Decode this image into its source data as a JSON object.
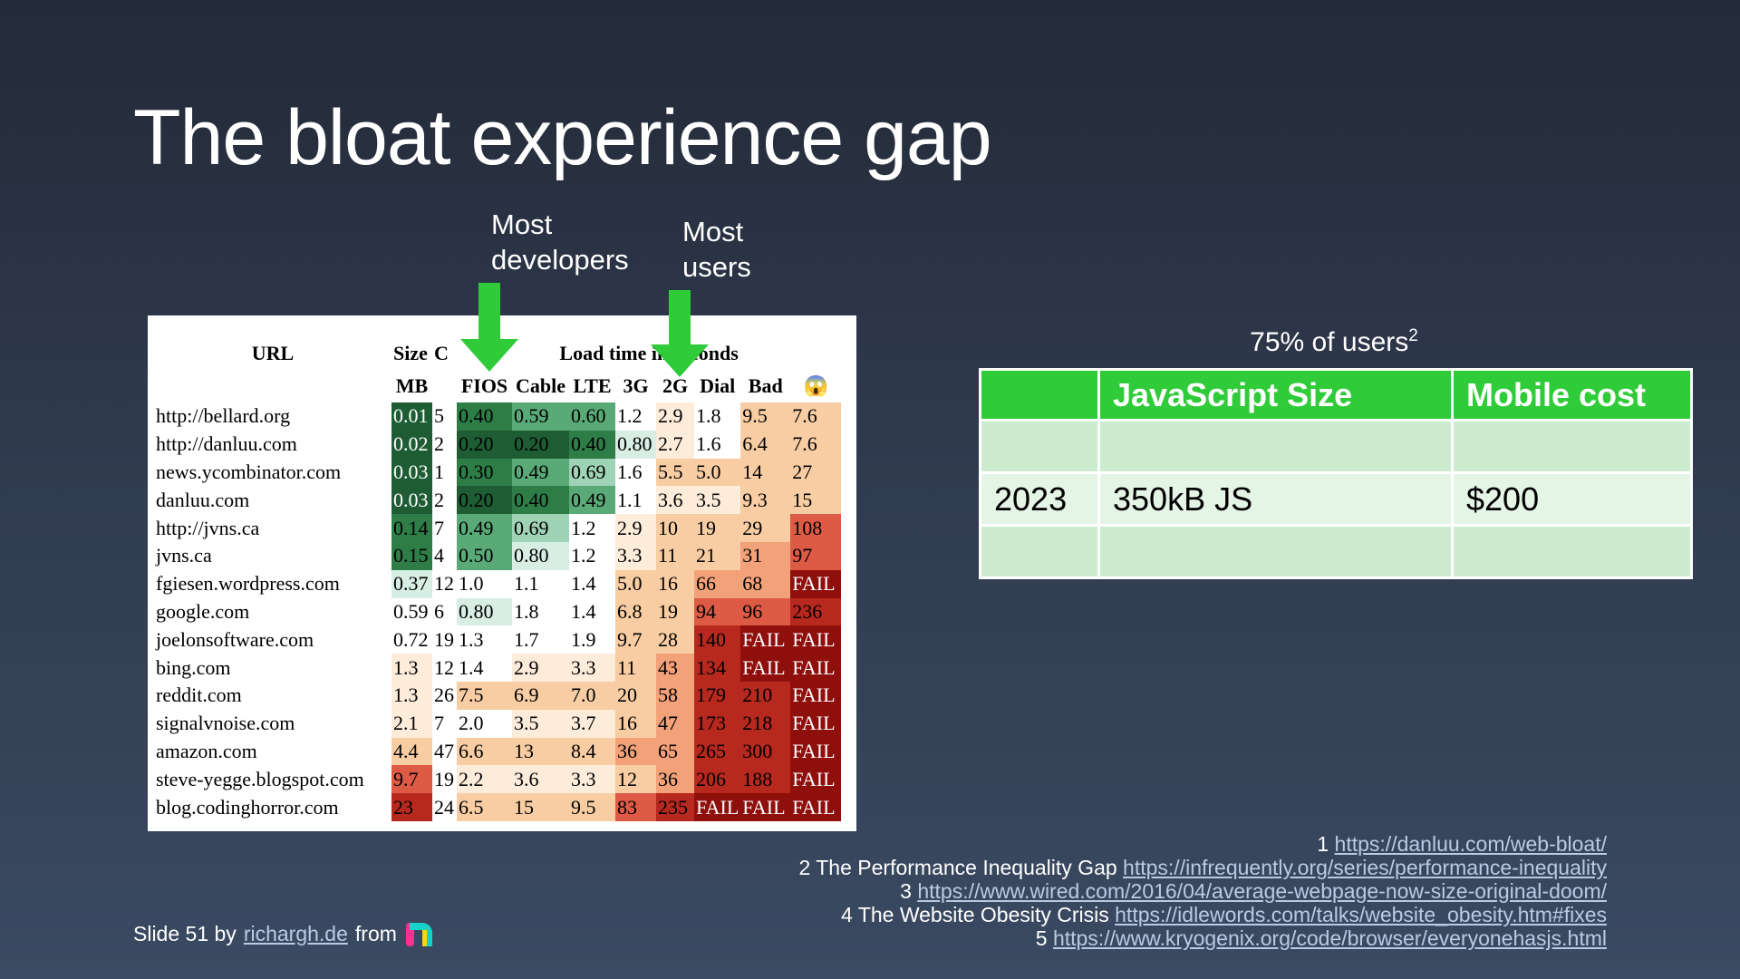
{
  "slide": {
    "title": "The bloat experience gap",
    "callout_developers": [
      "Most",
      "developers"
    ],
    "callout_users": [
      "Most",
      "users"
    ]
  },
  "load_table": {
    "group_headers": {
      "url": "URL",
      "size": "Size",
      "c": "C",
      "load_time": "Load time in seconds"
    },
    "columns": [
      "MB",
      "FIOS",
      "Cable",
      "LTE",
      "3G",
      "2G",
      "Dial",
      "Bad",
      "😱"
    ],
    "rows": [
      {
        "url": "http://bellard.org",
        "mb": "0.01",
        "c": "5",
        "v": [
          "0.40",
          "0.59",
          "0.60",
          "1.2",
          "2.9",
          "1.8",
          "9.5",
          "7.6"
        ]
      },
      {
        "url": "http://danluu.com",
        "mb": "0.02",
        "c": "2",
        "v": [
          "0.20",
          "0.20",
          "0.40",
          "0.80",
          "2.7",
          "1.6",
          "6.4",
          "7.6"
        ]
      },
      {
        "url": "news.ycombinator.com",
        "mb": "0.03",
        "c": "1",
        "v": [
          "0.30",
          "0.49",
          "0.69",
          "1.6",
          "5.5",
          "5.0",
          "14",
          "27"
        ]
      },
      {
        "url": "danluu.com",
        "mb": "0.03",
        "c": "2",
        "v": [
          "0.20",
          "0.40",
          "0.49",
          "1.1",
          "3.6",
          "3.5",
          "9.3",
          "15"
        ]
      },
      {
        "url": "http://jvns.ca",
        "mb": "0.14",
        "c": "7",
        "v": [
          "0.49",
          "0.69",
          "1.2",
          "2.9",
          "10",
          "19",
          "29",
          "108"
        ]
      },
      {
        "url": "jvns.ca",
        "mb": "0.15",
        "c": "4",
        "v": [
          "0.50",
          "0.80",
          "1.2",
          "3.3",
          "11",
          "21",
          "31",
          "97"
        ]
      },
      {
        "url": "fgiesen.wordpress.com",
        "mb": "0.37",
        "c": "12",
        "v": [
          "1.0",
          "1.1",
          "1.4",
          "5.0",
          "16",
          "66",
          "68",
          "FAIL"
        ]
      },
      {
        "url": "google.com",
        "mb": "0.59",
        "c": "6",
        "v": [
          "0.80",
          "1.8",
          "1.4",
          "6.8",
          "19",
          "94",
          "96",
          "236"
        ]
      },
      {
        "url": "joelonsoftware.com",
        "mb": "0.72",
        "c": "19",
        "v": [
          "1.3",
          "1.7",
          "1.9",
          "9.7",
          "28",
          "140",
          "FAIL",
          "FAIL"
        ]
      },
      {
        "url": "bing.com",
        "mb": "1.3",
        "c": "12",
        "v": [
          "1.4",
          "2.9",
          "3.3",
          "11",
          "43",
          "134",
          "FAIL",
          "FAIL"
        ]
      },
      {
        "url": "reddit.com",
        "mb": "1.3",
        "c": "26",
        "v": [
          "7.5",
          "6.9",
          "7.0",
          "20",
          "58",
          "179",
          "210",
          "FAIL"
        ]
      },
      {
        "url": "signalvnoise.com",
        "mb": "2.1",
        "c": "7",
        "v": [
          "2.0",
          "3.5",
          "3.7",
          "16",
          "47",
          "173",
          "218",
          "FAIL"
        ]
      },
      {
        "url": "amazon.com",
        "mb": "4.4",
        "c": "47",
        "v": [
          "6.6",
          "13",
          "8.4",
          "36",
          "65",
          "265",
          "300",
          "FAIL"
        ]
      },
      {
        "url": "steve-yegge.blogspot.com",
        "mb": "9.7",
        "c": "19",
        "v": [
          "2.2",
          "3.6",
          "3.3",
          "12",
          "36",
          "206",
          "188",
          "FAIL"
        ]
      },
      {
        "url": "blog.codinghorror.com",
        "mb": "23",
        "c": "24",
        "v": [
          "6.5",
          "15",
          "9.5",
          "83",
          "235",
          "FAIL",
          "FAIL",
          "FAIL"
        ]
      }
    ],
    "colors": {
      "g5": "#1e5c33",
      "g4": "#2e7d47",
      "g3": "#5aaa77",
      "g2": "#9fd3b5",
      "g1": "#d8eee4",
      "p0": "#ffffff",
      "p1": "#fdecd9",
      "p2": "#f8cda3",
      "p3": "#f2a178",
      "p4": "#dd5a45",
      "p5": "#b7281e",
      "p6": "#8e0f0c"
    }
  },
  "cost_table": {
    "caption": "75% of users",
    "caption_sup": "2",
    "headers": [
      "",
      "JavaScript Size",
      "Mobile cost"
    ],
    "rows": [
      [
        "",
        "",
        ""
      ],
      [
        "2023",
        "350kB JS",
        "$200"
      ],
      [
        "",
        "",
        ""
      ]
    ],
    "colors": {
      "header": "#2fcb38",
      "row_a": "#cdeccf",
      "row_b": "#e4f4e5"
    }
  },
  "footnotes": [
    {
      "prefix": "1 ",
      "link": "https://danluu.com/web-bloat/"
    },
    {
      "prefix": "2 The Performance Inequality Gap ",
      "link": "https://infrequently.org/series/performance-inequality"
    },
    {
      "prefix": "3 ",
      "link": "https://www.wired.com/2016/04/average-webpage-now-size-original-doom/"
    },
    {
      "prefix": "4 The Website Obesity Crisis ",
      "link": "https://idlewords.com/talks/website_obesity.htm#fixes"
    },
    {
      "prefix": "5 ",
      "link": "https://www.kryogenix.org/code/browser/everyonehasjs.html"
    }
  ],
  "credit": {
    "prefix": "Slide 51 by",
    "author": "richargh.de",
    "suffix": "from"
  },
  "arrow_color": "#2fcb38"
}
